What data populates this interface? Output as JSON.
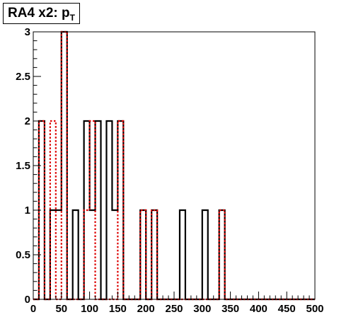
{
  "chart_data": {
    "type": "histogram",
    "title_main": "RA4 x2: p",
    "title_sub": "T",
    "xlim": [
      0,
      500
    ],
    "ylim": [
      0,
      3
    ],
    "bin_width": 10,
    "x_ticks": [
      "0",
      "50",
      "100",
      "150",
      "200",
      "250",
      "300",
      "350",
      "400",
      "450",
      "500"
    ],
    "y_ticks": [
      "0",
      "0.5",
      "1",
      "1.5",
      "2",
      "2.5",
      "3"
    ],
    "series": [
      {
        "style": "solid",
        "color": "#000000",
        "values": [
          0,
          2,
          0,
          1,
          1,
          3,
          0,
          1,
          0,
          2,
          1,
          2,
          0,
          2,
          1,
          2,
          0,
          0,
          0,
          1,
          0,
          1,
          0,
          0,
          0,
          0,
          1,
          0,
          0,
          0,
          1,
          0,
          0,
          1,
          0,
          0,
          0,
          0,
          0,
          0,
          0,
          0,
          0,
          0,
          0,
          0,
          0,
          0,
          0,
          0
        ]
      },
      {
        "style": "dotted",
        "color": "#dd0000",
        "values": [
          0,
          2,
          0,
          2,
          0,
          3,
          0,
          0,
          0,
          1,
          2,
          0,
          0,
          0,
          0,
          2,
          0,
          0,
          0,
          1,
          0,
          1,
          0,
          0,
          0,
          0,
          0,
          0,
          0,
          0,
          0,
          0,
          0,
          1,
          0,
          0,
          0,
          0,
          0,
          0,
          0,
          0,
          0,
          0,
          0,
          0,
          0,
          0,
          0,
          0
        ]
      }
    ]
  }
}
